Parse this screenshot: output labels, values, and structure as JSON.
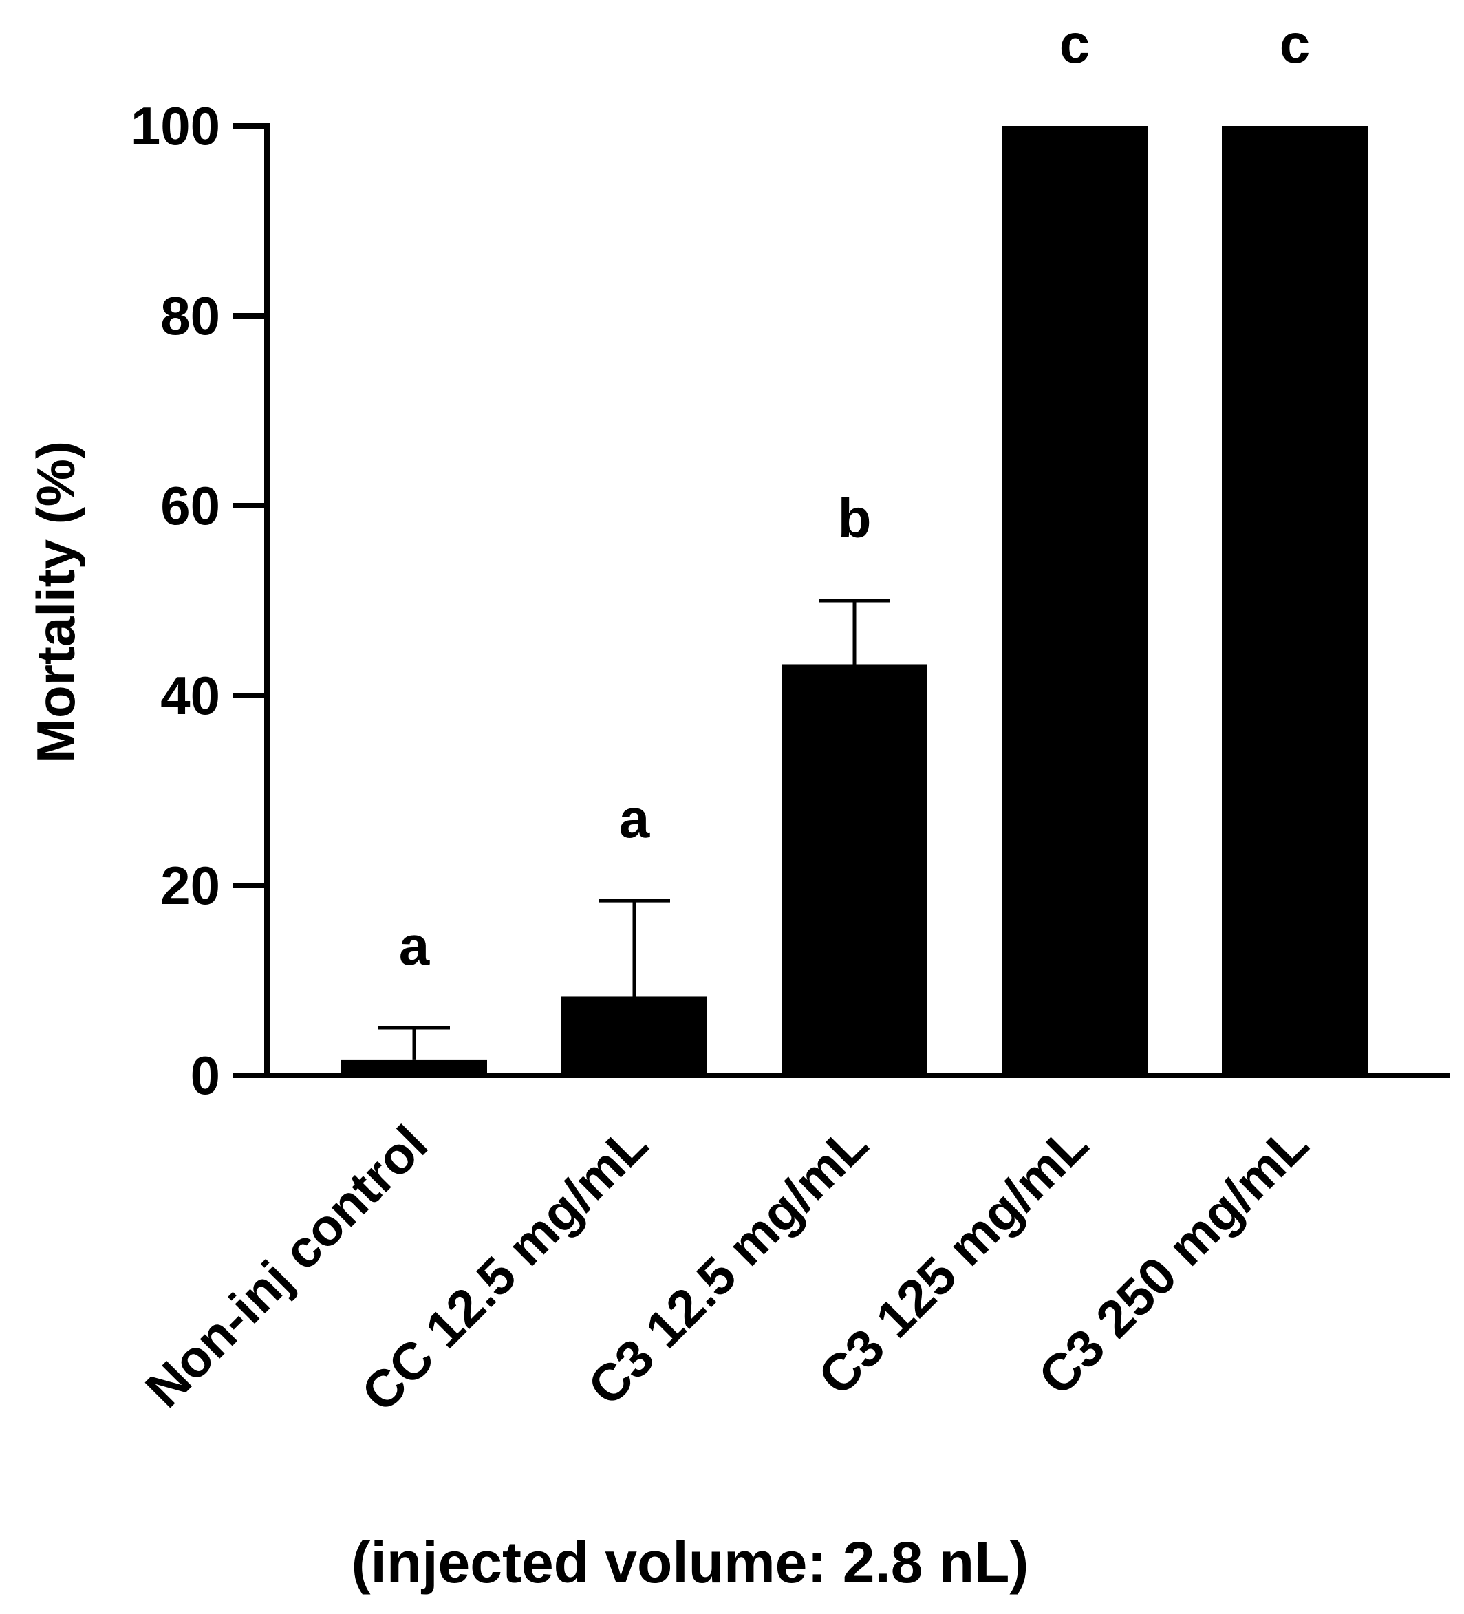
{
  "chart_data": {
    "type": "bar",
    "categories": [
      "Non-inj control",
      "CC 12.5 mg/mL",
      "C3 12.5 mg/mL",
      "C3 125 mg/mL",
      "C3 250 mg/mL"
    ],
    "values": [
      1.6,
      8.3,
      43.3,
      100,
      100
    ],
    "error_upper": [
      5.0,
      18.4,
      50.0,
      null,
      null
    ],
    "significance_letters": [
      "a",
      "a",
      "b",
      "c",
      "c"
    ],
    "title": "",
    "xlabel": "(injected volume: 2.8 nL)",
    "ylabel": "Mortality (%)",
    "ylim": [
      0,
      100
    ],
    "yticks": [
      "0",
      "20",
      "40",
      "60",
      "80",
      "100"
    ],
    "grid": false,
    "bar_color": "#000000"
  }
}
